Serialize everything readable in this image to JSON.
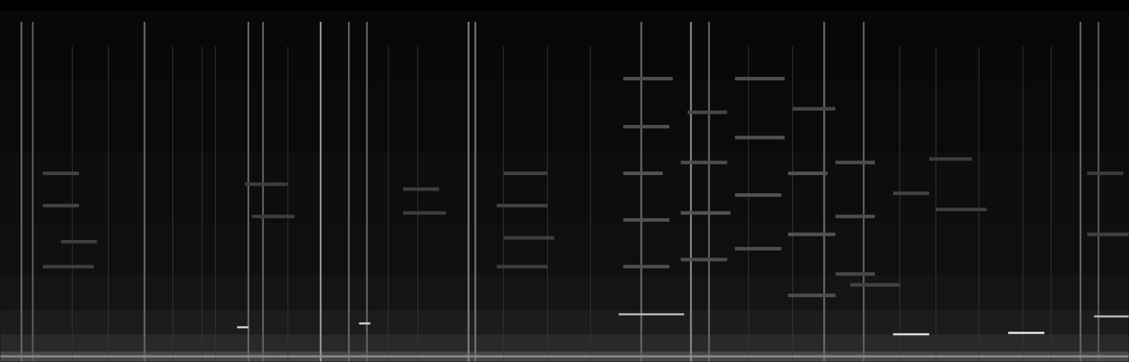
{
  "chart_data": {
    "type": "spectrogram",
    "xlim": [
      0,
      100
    ],
    "ylim": [
      0,
      100
    ],
    "zlim": [
      0,
      100
    ],
    "tick_labels": false,
    "background": {
      "band_edges": [
        0,
        3,
        8,
        15,
        25,
        40,
        60,
        80,
        100
      ],
      "levels": [
        28,
        16,
        11,
        8,
        6,
        5,
        4,
        3
      ]
    },
    "transients": {
      "time": [
        1.9,
        2.9,
        12.8,
        22.0,
        23.3,
        28.4,
        30.9,
        32.5,
        41.5,
        42.1,
        56.8,
        61.2,
        62.8,
        73.0,
        76.5,
        95.7,
        97.3,
        6.4,
        9.6,
        15.3,
        17.9,
        19.1,
        25.5,
        34.4,
        37.0,
        44.6,
        48.5,
        52.3,
        66.3,
        70.2,
        79.7,
        82.9,
        86.7,
        90.6,
        93.1
      ],
      "freq_top": [
        97,
        97,
        97,
        97,
        97,
        97,
        97,
        97,
        97,
        97,
        97,
        97,
        97,
        97,
        97,
        97,
        97,
        90,
        90,
        90,
        90,
        90,
        90,
        90,
        90,
        90,
        90,
        90,
        90,
        90,
        90,
        90,
        90,
        90,
        90
      ],
      "level": [
        40,
        35,
        40,
        40,
        38,
        60,
        40,
        38,
        50,
        45,
        40,
        55,
        40,
        42,
        38,
        40,
        35,
        20,
        20,
        20,
        20,
        20,
        20,
        20,
        20,
        20,
        20,
        20,
        20,
        20,
        20,
        20,
        20,
        20,
        20
      ]
    },
    "tones": {
      "start": [
        55.2,
        55.2,
        55.2,
        55.2,
        55.2,
        60.3,
        60.3,
        60.3,
        60.9,
        65.1,
        65.1,
        65.1,
        65.1,
        69.8,
        69.8,
        69.8,
        70.2,
        74.0,
        74.0,
        74.0,
        79.1,
        75.3,
        3.8,
        3.8,
        5.4,
        3.8,
        35.7,
        35.7,
        44.6,
        44.0,
        44.6,
        44.0,
        21.7,
        22.3,
        82.3,
        82.9,
        96.3,
        96.3,
        54.8,
        79.1,
        89.3,
        96.9,
        21.0,
        31.8,
        0
      ],
      "end": [
        59.6,
        59.3,
        58.7,
        59.3,
        59.3,
        64.4,
        64.7,
        64.4,
        64.4,
        69.5,
        69.5,
        69.2,
        69.2,
        73.3,
        74.0,
        74.0,
        74.0,
        77.5,
        77.5,
        77.5,
        82.3,
        79.7,
        7.0,
        7.0,
        8.6,
        8.3,
        38.9,
        39.5,
        48.5,
        48.5,
        49.1,
        48.5,
        25.5,
        26.1,
        86.1,
        87.4,
        100,
        99.5,
        60.6,
        82.3,
        92.5,
        100,
        22.0,
        32.8,
        100
      ],
      "freq": [
        80.9,
        67.2,
        53.9,
        40.6,
        27.3,
        57.0,
        42.6,
        29.3,
        71.3,
        80.9,
        64.1,
        47.7,
        32.4,
        53.9,
        36.5,
        19.1,
        72.3,
        57.0,
        41.6,
        25.2,
        48.2,
        22.1,
        53.9,
        44.7,
        34.4,
        27.3,
        49.4,
        42.6,
        53.9,
        44.7,
        35.5,
        27.3,
        50.8,
        41.6,
        58.0,
        43.6,
        36.5,
        53.9,
        13.5,
        7.8,
        8.2,
        12.9,
        9.8,
        10.9,
        1.5
      ],
      "level": [
        30,
        30,
        32,
        32,
        30,
        30,
        32,
        30,
        28,
        30,
        32,
        32,
        30,
        32,
        32,
        30,
        28,
        30,
        30,
        28,
        26,
        26,
        26,
        26,
        24,
        24,
        24,
        24,
        26,
        26,
        24,
        24,
        24,
        24,
        24,
        24,
        26,
        24,
        70,
        85,
        90,
        70,
        80,
        80,
        55
      ]
    }
  }
}
